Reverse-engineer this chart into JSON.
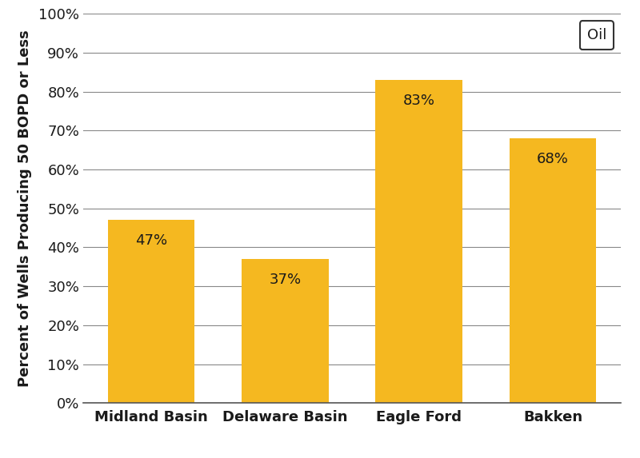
{
  "categories": [
    "Midland Basin",
    "Delaware Basin",
    "Eagle Ford",
    "Bakken"
  ],
  "values": [
    47,
    37,
    83,
    68
  ],
  "labels": [
    "47%",
    "37%",
    "83%",
    "68%"
  ],
  "bar_color": "#F5B820",
  "ylabel": "Percent of Wells Producing 50 BOPD or Less",
  "ylim": [
    0,
    100
  ],
  "yticks": [
    0,
    10,
    20,
    30,
    40,
    50,
    60,
    70,
    80,
    90,
    100
  ],
  "ytick_labels": [
    "0%",
    "10%",
    "20%",
    "30%",
    "40%",
    "50%",
    "60%",
    "70%",
    "80%",
    "90%",
    "100%"
  ],
  "legend_label": "Oil",
  "label_fontsize": 13,
  "tick_fontsize": 13,
  "bar_label_fontsize": 13,
  "bar_width": 0.65,
  "background_color": "#ffffff",
  "grid_color": "#888888",
  "axis_label_color": "#1a1a1a",
  "bar_label_color": "#1a1a1a"
}
